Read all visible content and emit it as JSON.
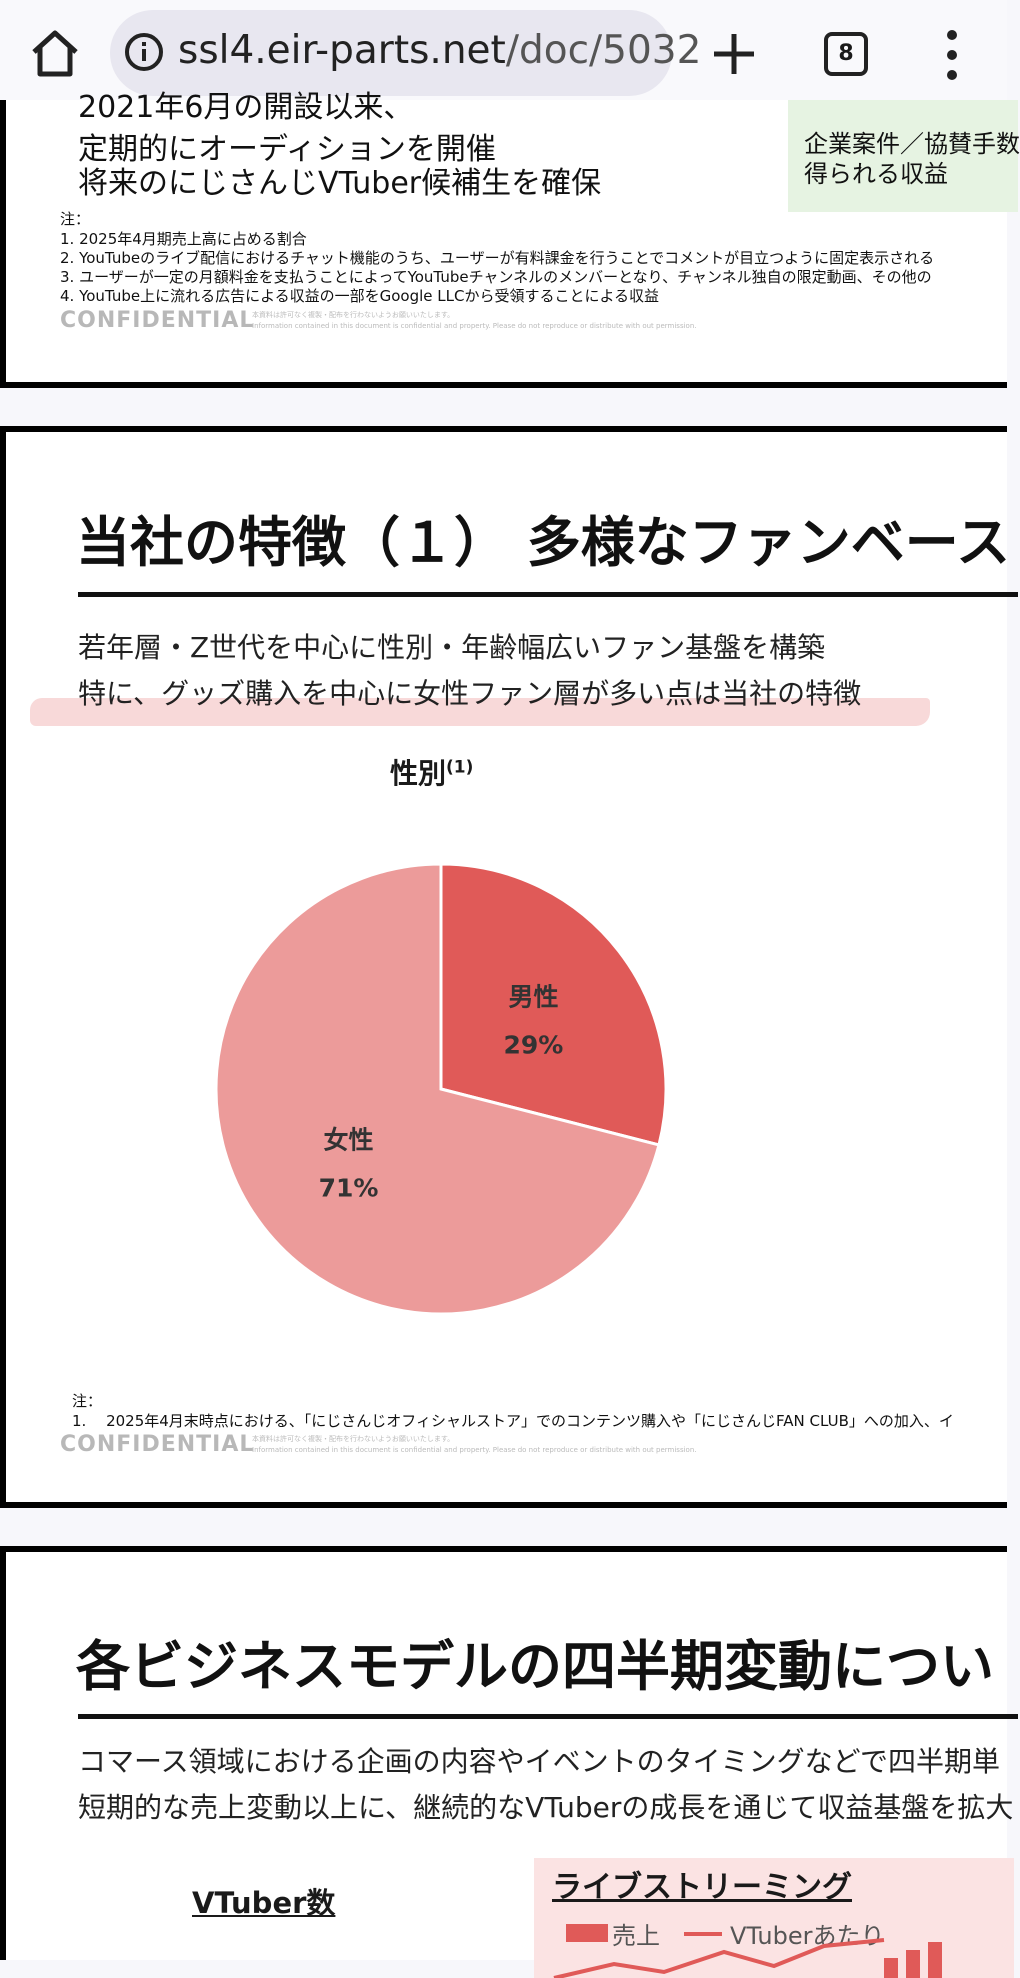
{
  "browser": {
    "url_host": "ssl4.eir-parts.net",
    "url_path": "/doc/5032",
    "tab_count": "8"
  },
  "slide1": {
    "lines": [
      "2021年6月の開設以来、",
      "定期的にオーディションを開催",
      "将来のにじさんじVTuber候補生を確保"
    ],
    "side_box": [
      "企業案件／協賛手数",
      "得られる収益"
    ],
    "notes_header": "注：",
    "notes": [
      "1. 2025年4月期売上高に占める割合",
      "2. YouTubeのライブ配信におけるチャット機能のうち、ユーザーが有料課金を行うことでコメントが目立つように固定表示される",
      "3. ユーザーが一定の月額料金を支払うことによってYouTubeチャンネルのメンバーとなり、チャンネル独自の限定動画、その他の",
      "4. YouTube上に流れる広告による収益の一部をGoogle LLCから受領することによる収益"
    ],
    "confidential": "CONFIDENTIAL",
    "disclaimer_jp": "本資料は許可なく複製・配布を行わないようお願いいたします。",
    "disclaimer_en": "Information contained in this document is confidential and property. Please do not reproduce or distribute with out permission."
  },
  "slide2": {
    "title": "当社の特徴（１） 多様なファンベース",
    "subtitle_lines": [
      "若年層・Z世代を中心に性別・年齢幅広いファン基盤を構築",
      "特に、グッズ購入を中心に女性ファン層が多い点は当社の特徴"
    ],
    "notes_header": "注：",
    "note_1": "1.　 2025年4月末時点における、「にじさんじオフィシャルストア」でのコンテンツ購入や「にじさんじFAN CLUB」への加入、イ",
    "confidential": "CONFIDENTIAL",
    "disclaimer_jp": "本資料は許可なく複製・配布を行わないようお願いいたします。",
    "disclaimer_en": "Information contained in this document is confidential and property. Please do not reproduce or distribute with out permission."
  },
  "chart_data": {
    "type": "pie",
    "title": "性別",
    "title_superscript": "(1)",
    "categories": [
      "男性",
      "女性"
    ],
    "values": [
      29,
      71
    ],
    "value_labels": [
      "29%",
      "71%"
    ],
    "colors": [
      "#e05a58",
      "#ec9b9a"
    ]
  },
  "slide3": {
    "title": "各ビジネスモデルの四半期変動につい",
    "subtitle_lines": [
      "コマース領域における企画の内容やイベントのタイミングなどで四半期単",
      "短期的な売上変動以上に、継続的なVTuberの成長を通じて収益基盤を拡大"
    ],
    "vtuber_count_label": "VTuber数",
    "panel_title": "ライブストリーミング",
    "legend_sales": "売上",
    "legend_per_vtuber": "VTuberあたり"
  }
}
